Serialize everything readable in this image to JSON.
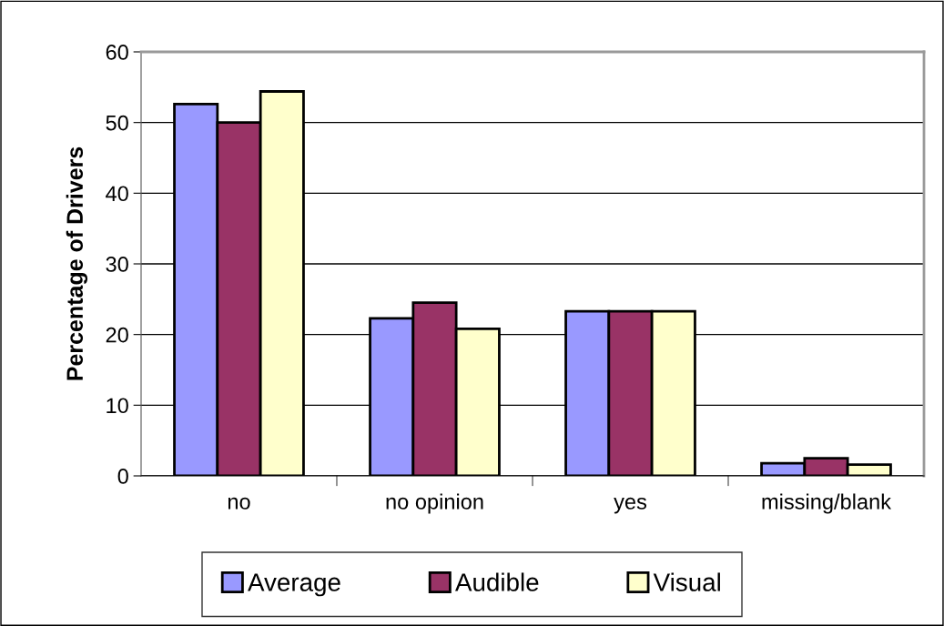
{
  "chart_data": {
    "type": "bar",
    "ylabel": "Percentage of Drivers",
    "categories": [
      "no",
      "no opinion",
      "yes",
      "missing/blank"
    ],
    "series": [
      {
        "name": "Average",
        "color": "#9999ff",
        "values": [
          52.6,
          22.3,
          23.3,
          1.8
        ]
      },
      {
        "name": "Audible",
        "color": "#993366",
        "values": [
          50.0,
          24.5,
          23.3,
          2.5
        ]
      },
      {
        "name": "Visual",
        "color": "#ffffcc",
        "values": [
          54.4,
          20.8,
          23.3,
          1.6
        ]
      }
    ],
    "ylim": [
      0,
      60
    ],
    "yticks": [
      0,
      10,
      20,
      30,
      40,
      50,
      60
    ],
    "grid": "y",
    "legend": "bottom"
  }
}
